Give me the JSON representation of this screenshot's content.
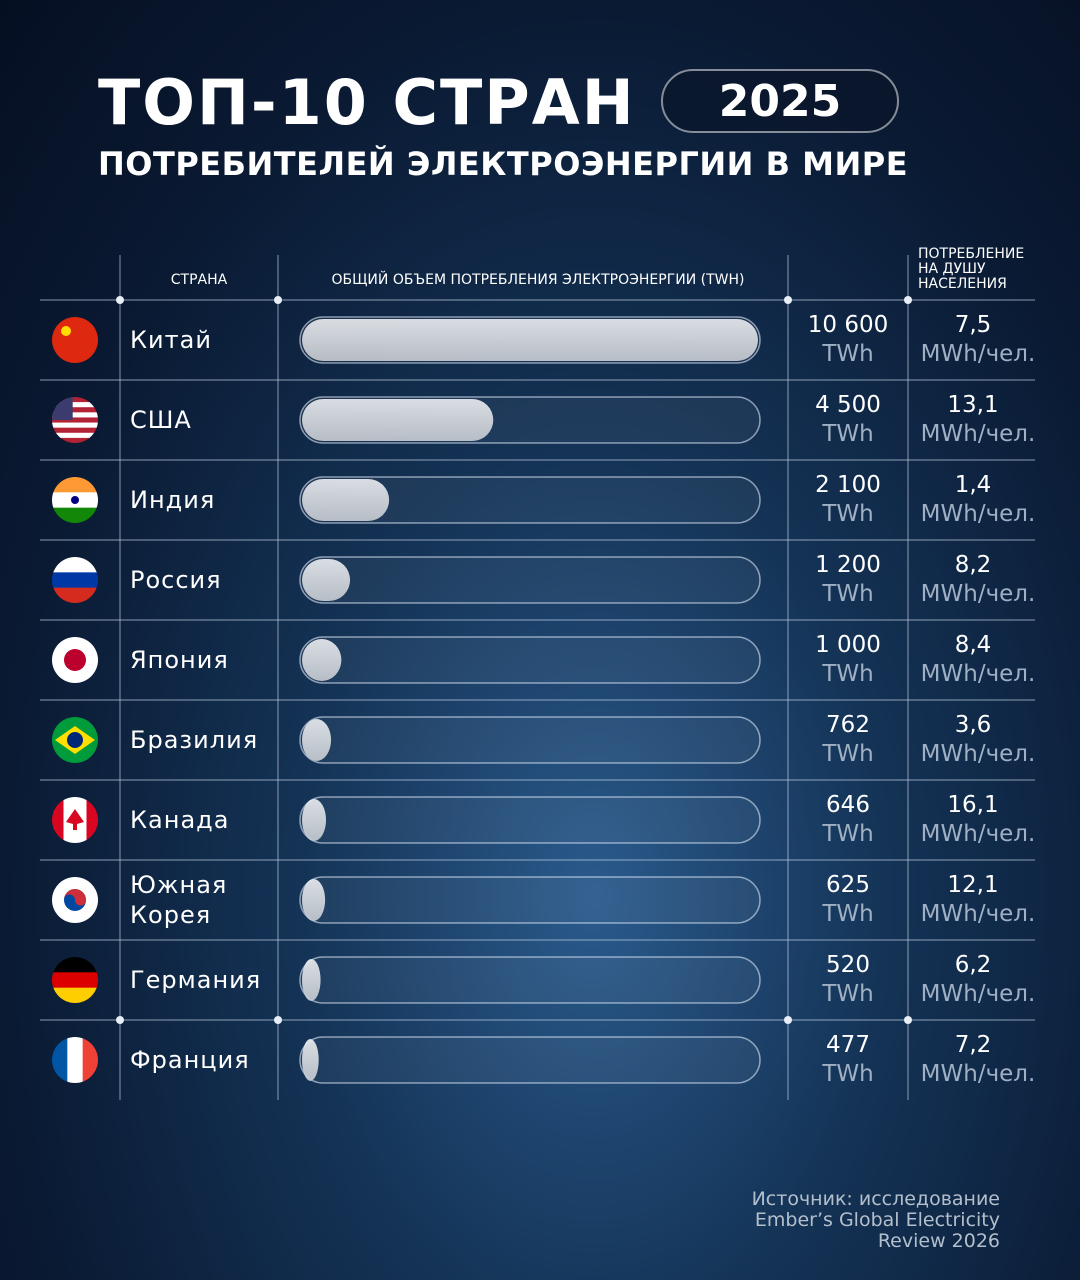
{
  "title": "ТОП-10 СТРАН",
  "year": "2025",
  "subtitle": "ПОТРЕБИТЕЛЕЙ ЭЛЕКТРОЭНЕРГИИ В МИРЕ",
  "chart_data": {
    "type": "bar",
    "orientation": "horizontal",
    "columns": [
      "СТРАНА",
      "ОБЩИЙ ОБЪЕМ ПОТРЕБЛЕНИЯ ЭЛЕКТРОЭНЕРГИИ (TWH)",
      "ПОТРЕБЛЕНИЕ НА ДУШУ НАСЕЛЕНИЯ"
    ],
    "categories": [
      "Китай",
      "США",
      "Индия",
      "Россия",
      "Япония",
      "Бразилия",
      "Канада",
      "Южная Корея",
      "Германия",
      "Франция"
    ],
    "values": [
      10600,
      4500,
      2100,
      1200,
      1000,
      762,
      646,
      625,
      520,
      477
    ],
    "value_labels": [
      "10 600",
      "4 500",
      "2 100",
      "1 200",
      "1 000",
      "762",
      "646",
      "625",
      "520",
      "477"
    ],
    "unit": "TWh",
    "per_capita": [
      7.5,
      13.1,
      1.4,
      8.2,
      8.4,
      3.6,
      16.1,
      12.1,
      6.2,
      7.2
    ],
    "per_capita_labels": [
      "7,5",
      "13,1",
      "1,4",
      "8,2",
      "8,4",
      "3,6",
      "16,1",
      "12,1",
      "6,2",
      "7,2"
    ],
    "per_capita_unit": "MWh/чел.",
    "xlim": [
      0,
      10600
    ],
    "color": "#c8ccd2"
  },
  "source": [
    "Источник: исследование",
    "Ember’s Global Electricity",
    "Review 2026"
  ]
}
